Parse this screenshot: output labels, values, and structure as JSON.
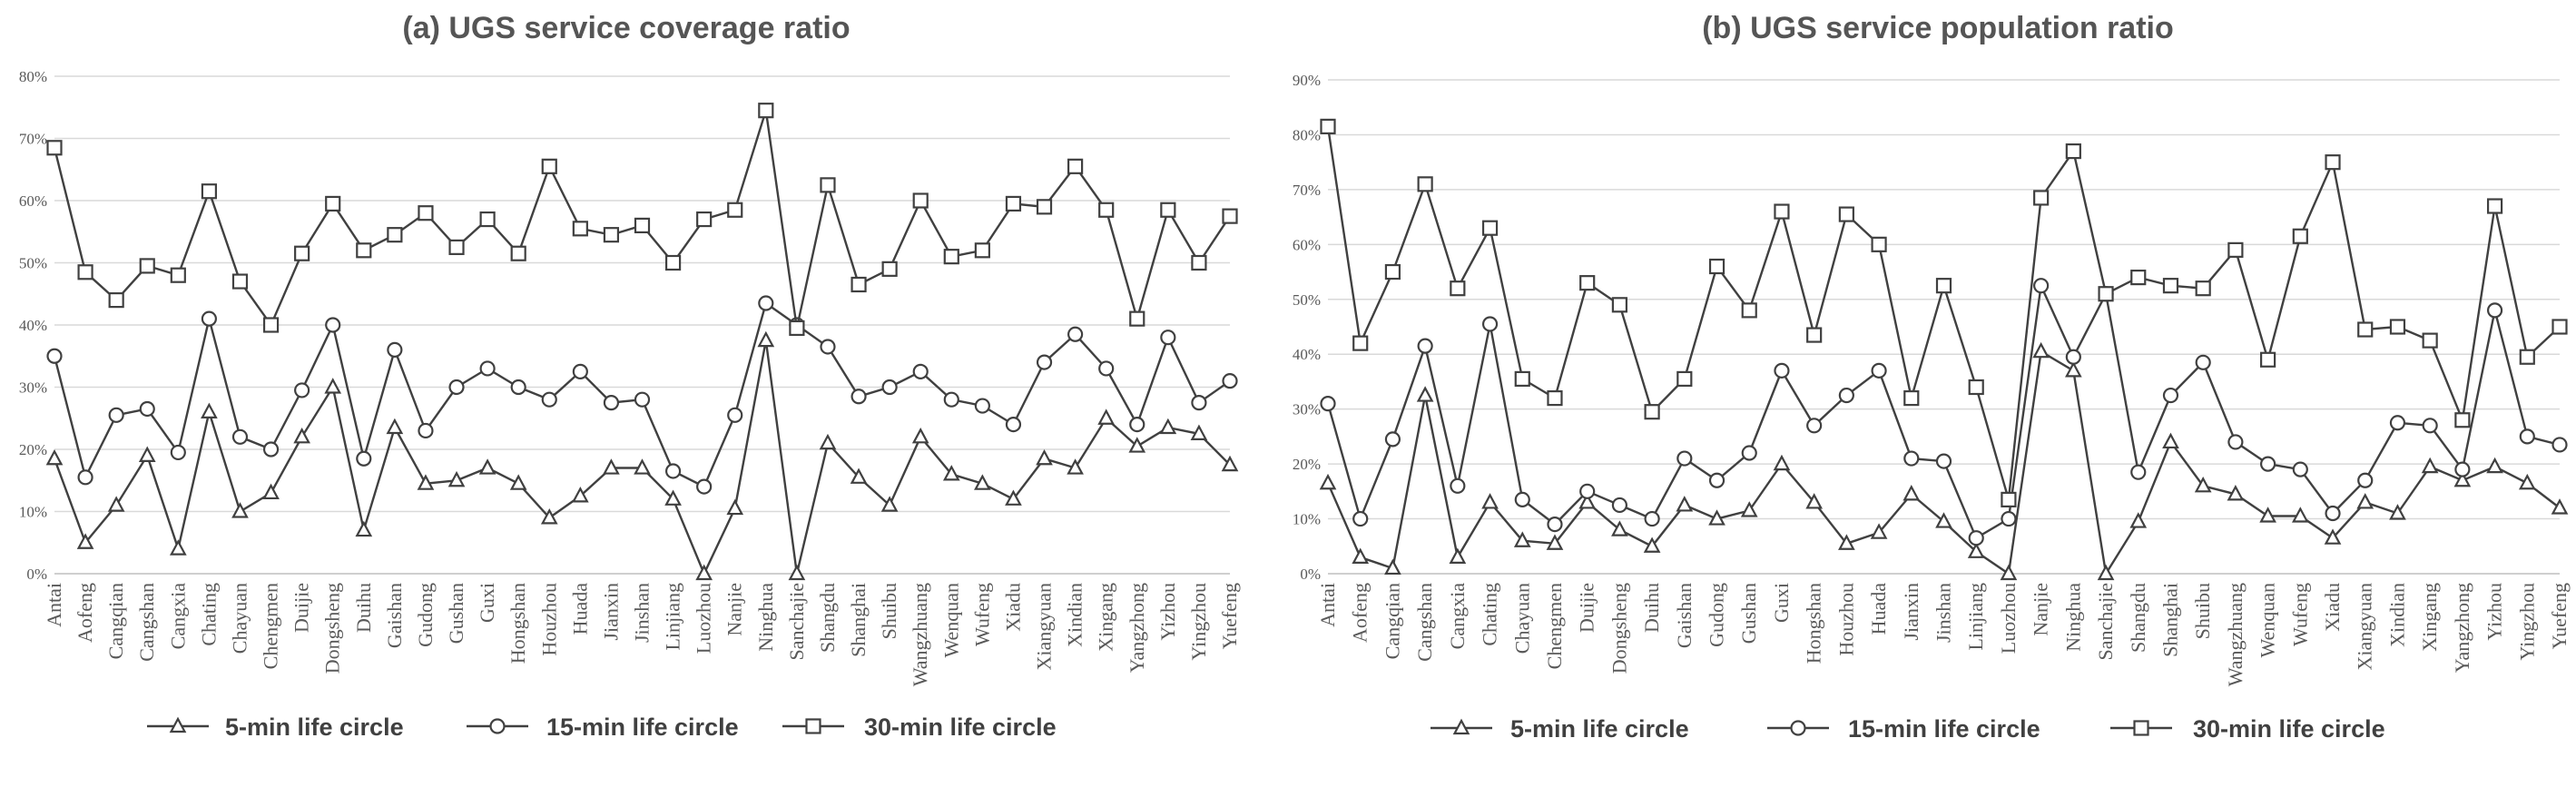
{
  "legend": [
    {
      "label": "5-min life circle",
      "marker": "triangle"
    },
    {
      "label": "15-min life circle",
      "marker": "circle"
    },
    {
      "label": "30-min life circle",
      "marker": "square"
    }
  ],
  "colors": {
    "series": "#404040",
    "grid": "#d9d9d9",
    "text": "#595959",
    "title": "#555555"
  },
  "chart_data": [
    {
      "type": "line",
      "title": "(a) UGS service coverage ratio",
      "xlabel": "",
      "ylabel": "",
      "ylim": [
        0,
        0.8
      ],
      "yticks": [
        "0%",
        "10%",
        "20%",
        "30%",
        "40%",
        "50%",
        "60%",
        "70%",
        "80%"
      ],
      "grid": "horizontal",
      "legend_position": "bottom",
      "categories": [
        "Antai",
        "Aofeng",
        "Cangqian",
        "Cangshan",
        "Cangxia",
        "Chating",
        "Chayuan",
        "Chengmen",
        "Duijie",
        "Dongsheng",
        "Duihu",
        "Gaishan",
        "Gudong",
        "Gushan",
        "Guxi",
        "Hongshan",
        "Houzhou",
        "Huada",
        "Jianxin",
        "Jinshan",
        "Linjiang",
        "Luozhou",
        "Nanjie",
        "Ninghua",
        "Sanchajie",
        "Shangdu",
        "Shanghai",
        "Shuibu",
        "Wangzhuang",
        "Wenquan",
        "Wufeng",
        "Xiadu",
        "Xiangyuan",
        "Xindian",
        "Xingang",
        "Yangzhong",
        "Yizhou",
        "Yingzhou",
        "Yuefeng"
      ],
      "series": [
        {
          "name": "5-min life circle",
          "marker": "triangle",
          "values": [
            0.185,
            0.05,
            0.11,
            0.19,
            0.04,
            0.26,
            0.1,
            0.13,
            0.22,
            0.3,
            0.07,
            0.235,
            0.145,
            0.15,
            0.17,
            0.145,
            0.09,
            0.125,
            0.17,
            0.17,
            0.12,
            0.0,
            0.105,
            0.375,
            0.0,
            0.21,
            0.155,
            0.11,
            0.22,
            0.16,
            0.145,
            0.12,
            0.185,
            0.17,
            0.25,
            0.205,
            0.235,
            0.225,
            0.175
          ]
        },
        {
          "name": "15-min life circle",
          "marker": "circle",
          "values": [
            0.35,
            0.155,
            0.255,
            0.265,
            0.195,
            0.41,
            0.22,
            0.2,
            0.295,
            0.4,
            0.185,
            0.36,
            0.23,
            0.3,
            0.33,
            0.3,
            0.28,
            0.325,
            0.275,
            0.28,
            0.165,
            0.14,
            0.255,
            0.435,
            0.4,
            0.365,
            0.285,
            0.3,
            0.325,
            0.28,
            0.27,
            0.24,
            0.34,
            0.385,
            0.33,
            0.24,
            0.38,
            0.275,
            0.31
          ]
        },
        {
          "name": "30-min life circle",
          "marker": "square",
          "values": [
            0.685,
            0.485,
            0.44,
            0.495,
            0.48,
            0.615,
            0.47,
            0.4,
            0.515,
            0.595,
            0.52,
            0.545,
            0.58,
            0.525,
            0.57,
            0.515,
            0.655,
            0.555,
            0.545,
            0.56,
            0.5,
            0.57,
            0.585,
            0.745,
            0.395,
            0.625,
            0.465,
            0.49,
            0.6,
            0.51,
            0.52,
            0.595,
            0.59,
            0.655,
            0.585,
            0.41,
            0.585,
            0.5,
            0.575
          ]
        }
      ]
    },
    {
      "type": "line",
      "title": "(b) UGS service population ratio",
      "xlabel": "",
      "ylabel": "",
      "ylim": [
        0,
        0.9
      ],
      "yticks": [
        "0%",
        "10%",
        "20%",
        "30%",
        "40%",
        "50%",
        "60%",
        "70%",
        "80%",
        "90%"
      ],
      "grid": "horizontal",
      "legend_position": "bottom",
      "categories": [
        "Antai",
        "Aofeng",
        "Cangqian",
        "Cangshan",
        "Cangxia",
        "Chating",
        "Chayuan",
        "Chengmen",
        "Duijie",
        "Dongsheng",
        "Duihu",
        "Gaishan",
        "Gudong",
        "Gushan",
        "Guxi",
        "Hongshan",
        "Houzhou",
        "Huada",
        "Jianxin",
        "Jinshan",
        "Linjiang",
        "Luozhou",
        "Nanjie",
        "Ninghua",
        "Sanchajie",
        "Shangdu",
        "Shanghai",
        "Shuibu",
        "Wangzhuang",
        "Wenquan",
        "Wufeng",
        "Xiadu",
        "Xiangyuan",
        "Xindian",
        "Xingang",
        "Yangzhong",
        "Yizhou",
        "Yingzhou",
        "Yuefeng"
      ],
      "series": [
        {
          "name": "5-min life circle",
          "marker": "triangle",
          "values": [
            0.165,
            0.03,
            0.01,
            0.325,
            0.03,
            0.13,
            0.06,
            0.055,
            0.13,
            0.08,
            0.05,
            0.125,
            0.1,
            0.115,
            0.2,
            0.13,
            0.055,
            0.075,
            0.145,
            0.095,
            0.04,
            0.0,
            0.405,
            0.37,
            0.0,
            0.095,
            0.24,
            0.16,
            0.145,
            0.105,
            0.105,
            0.065,
            0.13,
            0.11,
            0.195,
            0.17,
            0.195,
            0.165,
            0.12
          ]
        },
        {
          "name": "15-min life circle",
          "marker": "circle",
          "values": [
            0.31,
            0.1,
            0.245,
            0.415,
            0.16,
            0.455,
            0.135,
            0.09,
            0.15,
            0.125,
            0.1,
            0.21,
            0.17,
            0.22,
            0.37,
            0.27,
            0.325,
            0.37,
            0.21,
            0.205,
            0.065,
            0.1,
            0.525,
            0.395,
            0.51,
            0.185,
            0.325,
            0.385,
            0.24,
            0.2,
            0.19,
            0.11,
            0.17,
            0.275,
            0.27,
            0.19,
            0.48,
            0.25,
            0.235
          ]
        },
        {
          "name": "30-min life circle",
          "marker": "square",
          "values": [
            0.815,
            0.42,
            0.55,
            0.71,
            0.52,
            0.63,
            0.355,
            0.32,
            0.53,
            0.49,
            0.295,
            0.355,
            0.56,
            0.48,
            0.66,
            0.435,
            0.655,
            0.6,
            0.32,
            0.525,
            0.34,
            0.135,
            0.685,
            0.77,
            0.51,
            0.54,
            0.525,
            0.52,
            0.59,
            0.39,
            0.615,
            0.75,
            0.445,
            0.45,
            0.425,
            0.28,
            0.67,
            0.395,
            0.45
          ]
        }
      ]
    }
  ]
}
